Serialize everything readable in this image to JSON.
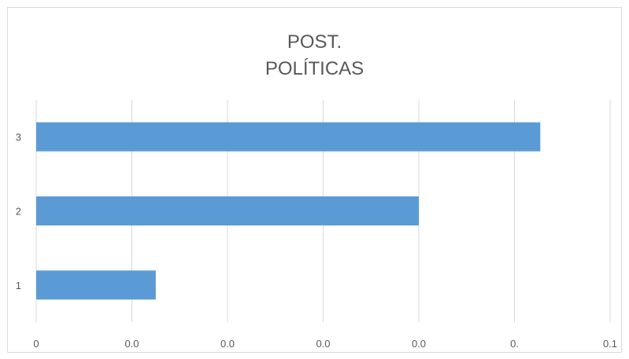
{
  "chart_data": {
    "type": "bar",
    "orientation": "horizontal",
    "title": [
      "POST.",
      "POLÍTICAS"
    ],
    "categories": [
      "1",
      "2",
      "3"
    ],
    "series": [
      {
        "values": [
          0.0125,
          0.04,
          0.0527
        ]
      }
    ],
    "xlim": [
      0,
      0.06
    ],
    "x_ticks": [
      0,
      0.01,
      0.02,
      0.03,
      0.04,
      0.05,
      0.06
    ],
    "x_tick_labels": [
      "0",
      "0.0",
      "0.0",
      "0.0",
      "0.0",
      "0.",
      "0.1"
    ],
    "xlabel": "",
    "ylabel": "",
    "grid": "vertical",
    "legend": "none",
    "colors": {
      "bar": "#5b9bd5",
      "grid": "#d9d9d9",
      "text": "#595959"
    }
  }
}
